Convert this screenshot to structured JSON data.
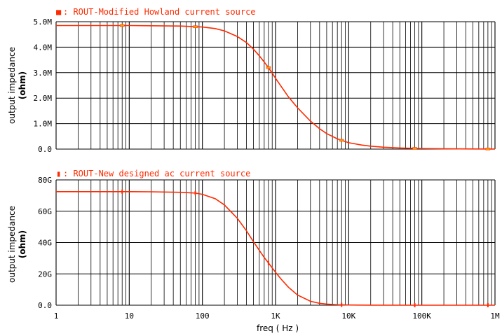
{
  "chart_data": [
    {
      "type": "line",
      "x_scale": "log",
      "xlim": [
        1,
        1000000
      ],
      "ylim": [
        0,
        5000000
      ],
      "y_ticks": [
        0,
        1000000,
        2000000,
        3000000,
        4000000,
        5000000
      ],
      "y_tick_labels": [
        "0.0",
        "1.0M",
        "2.0M",
        "3.0M",
        "4.0M",
        "5.0M"
      ],
      "ylabel_line1": "output impedance",
      "ylabel_line2": "(ohm)",
      "legend": {
        "marker": "■",
        "label": ": ROUT-Modified Howland current source"
      },
      "grid": true,
      "series": [
        {
          "name": "ROUT-Modified Howland current source",
          "color": "#ff2a00",
          "x": [
            1,
            2,
            5,
            10,
            20,
            50,
            100,
            150,
            200,
            300,
            400,
            500,
            600,
            700,
            800,
            900,
            1000,
            1200,
            1500,
            2000,
            3000,
            4000,
            5000,
            7000,
            10000,
            15000,
            20000,
            30000,
            50000,
            70000,
            100000,
            200000,
            500000,
            1000000
          ],
          "y": [
            4850000,
            4850000,
            4850000,
            4850000,
            4840000,
            4830000,
            4790000,
            4730000,
            4640000,
            4420000,
            4180000,
            3920000,
            3660000,
            3420000,
            3200000,
            2980000,
            2780000,
            2450000,
            2050000,
            1620000,
            1100000,
            800000,
            610000,
            400000,
            250000,
            160000,
            115000,
            75000,
            45000,
            32000,
            22000,
            12000,
            6000,
            4000
          ]
        }
      ]
    },
    {
      "type": "line",
      "x_scale": "log",
      "xlim": [
        1,
        1000000
      ],
      "ylim": [
        0,
        80000000000
      ],
      "y_ticks": [
        0,
        20000000000,
        40000000000,
        60000000000,
        80000000000
      ],
      "y_tick_labels": [
        "0.0",
        "20G",
        "40G",
        "60G",
        "80G"
      ],
      "x_ticks": [
        1,
        10,
        100,
        1000,
        10000,
        100000,
        1000000
      ],
      "x_tick_labels": [
        "1",
        "10",
        "100",
        "1K",
        "10K",
        "100K",
        "1M"
      ],
      "xlabel": "freq ( Hz )",
      "ylabel_line1": "output impedance",
      "ylabel_line2": "(ohm)",
      "legend": {
        "marker": "▮",
        "label": ": ROUT-New designed ac current source"
      },
      "grid": true,
      "series": [
        {
          "name": "ROUT-New designed ac current source",
          "color": "#ff2a00",
          "x": [
            1,
            2,
            5,
            10,
            20,
            50,
            80,
            100,
            150,
            200,
            300,
            400,
            500,
            600,
            700,
            800,
            1000,
            1200,
            1500,
            2000,
            3000,
            4000,
            5000,
            7000,
            10000,
            20000,
            100000,
            1000000
          ],
          "y": [
            72500000000,
            72500000000,
            72500000000,
            72500000000,
            72400000000,
            72100000000,
            71600000000,
            70800000000,
            68000000000,
            64000000000,
            55500000000,
            47500000000,
            40500000000,
            35000000000,
            30500000000,
            27000000000,
            21000000000,
            16500000000,
            11500000000,
            6500000000,
            2500000000,
            1200000000,
            700000000,
            300000000,
            150000000,
            50000000,
            10000000,
            0
          ]
        }
      ]
    }
  ]
}
